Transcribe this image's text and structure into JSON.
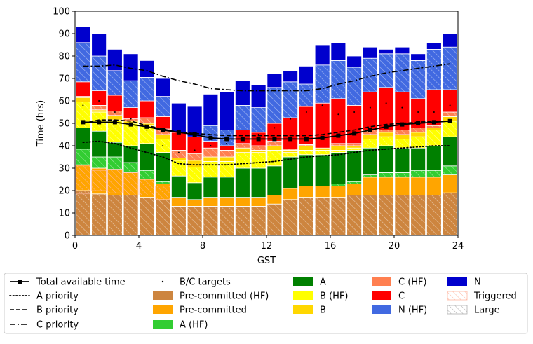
{
  "chart_data": {
    "type": "bar",
    "xlabel": "GST",
    "ylabel": "Time (hrs)",
    "xlim": [
      0,
      24
    ],
    "ylim": [
      0,
      100
    ],
    "x_ticks": [
      0,
      4,
      8,
      12,
      16,
      20,
      24
    ],
    "y_ticks": [
      0,
      10,
      20,
      30,
      40,
      50,
      60,
      70,
      80,
      90,
      100
    ],
    "x": [
      0.5,
      1.5,
      2.5,
      3.5,
      4.5,
      5.5,
      6.5,
      7.5,
      8.5,
      9.5,
      10.5,
      11.5,
      12.5,
      13.5,
      14.5,
      15.5,
      16.5,
      17.5,
      18.5,
      19.5,
      20.5,
      21.5,
      22.5,
      23.5
    ],
    "stack_order": [
      "Pre-committed (HF)",
      "Pre-committed",
      "A (HF)",
      "A",
      "B (HF)",
      "B",
      "C (HF)",
      "C",
      "N (HF)",
      "N"
    ],
    "series": [
      {
        "name": "Pre-committed (HF)",
        "color": "#cd853f",
        "values": [
          20,
          18.5,
          18,
          18,
          17,
          16,
          13,
          13,
          13,
          13,
          13,
          13,
          14,
          16,
          17,
          17,
          17,
          18,
          18,
          18,
          18,
          18,
          18,
          19
        ]
      },
      {
        "name": "Pre-committed",
        "color": "#ffa500",
        "values": [
          11.5,
          11.5,
          11.5,
          10,
          8,
          7,
          4,
          3,
          4,
          4,
          4,
          4,
          4,
          5,
          5,
          5,
          5,
          5,
          8,
          8,
          8,
          8,
          8,
          8
        ]
      },
      {
        "name": "A (HF)",
        "color": "#32cd32",
        "values": [
          7,
          5,
          5.5,
          4.5,
          4,
          1,
          0,
          0,
          0,
          0,
          0,
          0,
          0,
          0,
          0,
          0,
          1,
          1,
          1,
          2,
          2,
          3,
          3,
          4
        ]
      },
      {
        "name": "A",
        "color": "#008000",
        "values": [
          9.5,
          11.5,
          6.5,
          7.5,
          12,
          13,
          9.5,
          7.5,
          9,
          9,
          13,
          13,
          13,
          14,
          14,
          14,
          14,
          14,
          12,
          12,
          11,
          10,
          11,
          13
        ]
      },
      {
        "name": "B (HF)",
        "color": "#ffff00",
        "values": [
          11.5,
          8.5,
          10,
          10,
          8,
          6,
          7,
          7,
          7,
          7,
          7,
          7,
          7,
          2,
          2,
          2,
          1,
          1,
          4,
          4,
          4,
          5,
          7,
          7
        ]
      },
      {
        "name": "B",
        "color": "#ffd700",
        "values": [
          2,
          1,
          2,
          1,
          1,
          2,
          1,
          3,
          2,
          2,
          2,
          1,
          2,
          1,
          2,
          1,
          2,
          1,
          2,
          2,
          2,
          2,
          1,
          2
        ]
      },
      {
        "name": "C (HF)",
        "color": "#ff7f50",
        "values": [
          0.5,
          2,
          2,
          1,
          2.5,
          2.5,
          3.5,
          3,
          4,
          3,
          2,
          2,
          2,
          0.5,
          0.5,
          0,
          1,
          1,
          2,
          1,
          2,
          2,
          1,
          2
        ]
      },
      {
        "name": "C",
        "color": "#ff0000",
        "values": [
          6.5,
          6.5,
          7,
          5,
          7.5,
          5.5,
          8,
          7.5,
          3,
          2,
          6,
          6,
          8,
          14,
          17,
          20,
          20,
          17,
          17,
          19,
          17,
          13,
          16,
          10
        ]
      },
      {
        "name": "N (HF)",
        "color": "#4169e1",
        "values": [
          17.5,
          15.5,
          11,
          12,
          10.5,
          9,
          0,
          0,
          7,
          7,
          11,
          11,
          16,
          16,
          10,
          17,
          17,
          17,
          15,
          15,
          17,
          17,
          18,
          19
        ]
      },
      {
        "name": "N",
        "color": "#0000cd",
        "values": [
          7,
          10,
          9.5,
          12,
          7.5,
          8,
          13,
          13.5,
          14,
          17,
          11,
          10,
          6,
          5,
          8,
          9,
          8,
          5,
          5,
          2,
          3,
          3,
          3,
          6
        ]
      }
    ],
    "triggered_overlay": [
      {
        "stack_index": 1,
        "from": [
          18.5,
          20,
          19,
          18,
          18,
          16,
          0,
          0,
          0,
          0,
          0,
          0,
          0,
          0,
          0,
          0,
          0,
          0,
          0,
          0,
          0,
          0,
          0,
          0
        ],
        "to": [
          31,
          29,
          29.5,
          28,
          25,
          22,
          0,
          0,
          0,
          0,
          0,
          0,
          0,
          0,
          0,
          0,
          0,
          0,
          0,
          0,
          0,
          0,
          0,
          0
        ]
      }
    ],
    "total_available_time": [
      50.5,
      50.5,
      50.5,
      49.5,
      48.5,
      47,
      46,
      45,
      43.5,
      43,
      43,
      43,
      43,
      43,
      43,
      43.5,
      44.5,
      45.5,
      47,
      48.5,
      49.5,
      50,
      50.5,
      51
    ],
    "a_priority": [
      41.5,
      42,
      41,
      39,
      37,
      35,
      32,
      31.5,
      31.5,
      31.5,
      32,
      32.5,
      33,
      34,
      35,
      35.5,
      36,
      37,
      38,
      38.5,
      39,
      39.5,
      40,
      40
    ],
    "b_priority": [
      50,
      51.5,
      51.5,
      51,
      49,
      47.5,
      46,
      45.5,
      45,
      44.5,
      44.5,
      44.5,
      44.5,
      44.5,
      44.5,
      45,
      46,
      47,
      48.5,
      49.5,
      50,
      50.5,
      51,
      51
    ],
    "c_priority": [
      75.5,
      75.5,
      76,
      74.5,
      73.5,
      71,
      69,
      67.5,
      65.5,
      65,
      64.5,
      64.5,
      64.5,
      64.5,
      64.5,
      65.5,
      67.5,
      69,
      71,
      72.5,
      73.5,
      74.5,
      75.5,
      76.5
    ],
    "bc_targets": [
      {
        "x": 0.5,
        "y": 58
      },
      {
        "x": 1.5,
        "y": 60
      },
      {
        "x": 2.5,
        "y": 55
      },
      {
        "x": 3.5,
        "y": 52
      },
      {
        "x": 4.5,
        "y": 47
      },
      {
        "x": 5.5,
        "y": 40
      },
      {
        "x": 6.5,
        "y": 37
      },
      {
        "x": 7.5,
        "y": 38
      },
      {
        "x": 8.5,
        "y": 40
      },
      {
        "x": 9.5,
        "y": 41
      },
      {
        "x": 10.5,
        "y": 43
      },
      {
        "x": 11.5,
        "y": 45
      },
      {
        "x": 12.5,
        "y": 48
      },
      {
        "x": 13.5,
        "y": 52
      },
      {
        "x": 14.5,
        "y": 55
      },
      {
        "x": 15.5,
        "y": 58
      },
      {
        "x": 16.5,
        "y": 54
      },
      {
        "x": 17.5,
        "y": 55
      },
      {
        "x": 18.5,
        "y": 57
      },
      {
        "x": 19.5,
        "y": 59
      },
      {
        "x": 20.5,
        "y": 57
      },
      {
        "x": 21.5,
        "y": 55
      },
      {
        "x": 22.5,
        "y": 55
      },
      {
        "x": 23.5,
        "y": 58
      }
    ],
    "legend_position": "below",
    "legend": [
      {
        "label": "Total available time",
        "kind": "line-marker"
      },
      {
        "label": "A priority",
        "kind": "dotted"
      },
      {
        "label": "B priority",
        "kind": "dashed"
      },
      {
        "label": "C priority",
        "kind": "dashdot"
      },
      {
        "label": "B/C targets",
        "kind": "point"
      },
      {
        "label": "Pre-committed (HF)",
        "kind": "patch",
        "color": "#cd853f"
      },
      {
        "label": "Pre-committed",
        "kind": "patch",
        "color": "#ffa500"
      },
      {
        "label": "A (HF)",
        "kind": "patch",
        "color": "#32cd32"
      },
      {
        "label": "A",
        "kind": "patch",
        "color": "#008000"
      },
      {
        "label": "B (HF)",
        "kind": "patch",
        "color": "#ffff00"
      },
      {
        "label": "B",
        "kind": "patch",
        "color": "#ffd700"
      },
      {
        "label": "C (HF)",
        "kind": "patch",
        "color": "#ff7f50"
      },
      {
        "label": "C",
        "kind": "patch",
        "color": "#ff0000"
      },
      {
        "label": "N (HF)",
        "kind": "patch",
        "color": "#4169e1"
      },
      {
        "label": "N",
        "kind": "patch",
        "color": "#0000cd"
      },
      {
        "label": "Triggered",
        "kind": "hatch",
        "color": "#ffb6a0"
      },
      {
        "label": "Large",
        "kind": "hatch",
        "color": "#b0b0b0"
      }
    ]
  }
}
